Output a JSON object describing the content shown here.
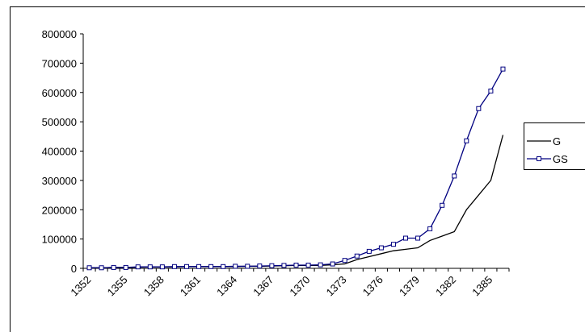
{
  "chart_data": {
    "type": "line",
    "categories": [
      "1352",
      null,
      null,
      "1355",
      null,
      null,
      "1358",
      null,
      null,
      "1361",
      null,
      null,
      "1364",
      null,
      null,
      "1367",
      null,
      null,
      "1370",
      null,
      null,
      "1373",
      null,
      null,
      "1376",
      null,
      null,
      "1379",
      null,
      null,
      "1382",
      null,
      null,
      "1385",
      null
    ],
    "series": [
      {
        "name": "G",
        "color": "#000000",
        "marker": false,
        "values": [
          2000,
          2000,
          3000,
          3000,
          4000,
          5000,
          5000,
          5000,
          6000,
          6000,
          6000,
          6000,
          6000,
          7000,
          7000,
          8000,
          9000,
          10000,
          10000,
          10000,
          12000,
          15000,
          30000,
          40000,
          50000,
          60000,
          65000,
          70000,
          95000,
          110000,
          125000,
          200000,
          250000,
          300000,
          455000
        ]
      },
      {
        "name": "GS",
        "color": "#000080",
        "marker": true,
        "values": [
          2000,
          2000,
          3000,
          3000,
          5000,
          5000,
          5000,
          6000,
          6000,
          6000,
          6000,
          6000,
          7000,
          7000,
          8000,
          9000,
          10000,
          11000,
          11000,
          12000,
          15000,
          27000,
          42000,
          58000,
          70000,
          82000,
          103000,
          103000,
          135000,
          215000,
          315000,
          435000,
          545000,
          605000,
          680000
        ]
      }
    ],
    "ylim": [
      0,
      800000
    ],
    "yticks": [
      0,
      100000,
      200000,
      300000,
      400000,
      500000,
      600000,
      700000,
      800000
    ]
  }
}
